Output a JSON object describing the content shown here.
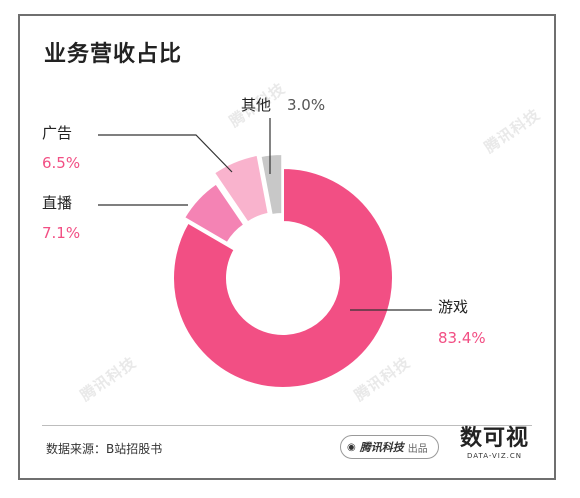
{
  "chart_data": {
    "type": "pie",
    "title": "业务营收占比",
    "categories": [
      "游戏",
      "直播",
      "广告",
      "其他"
    ],
    "values": [
      83.4,
      7.1,
      6.5,
      3.0
    ],
    "value_labels": [
      "83.4%",
      "7.1%",
      "6.5%",
      "3.0%"
    ],
    "colors": [
      "#f24f84",
      "#f483b4",
      "#f9b3cd",
      "#c8c8c8"
    ],
    "label_colors": [
      "#f24f84",
      "#f24f84",
      "#f24f84",
      "#555555"
    ],
    "style": "donut-exploded",
    "legend": "none"
  },
  "footer": {
    "source": "数据来源：B站招股书",
    "publisher": "腾讯科技",
    "publisher_suffix": "出品",
    "brand_big": "数可视",
    "brand_small": "DATA-VIZ.CN"
  },
  "watermark": "腾讯科技"
}
